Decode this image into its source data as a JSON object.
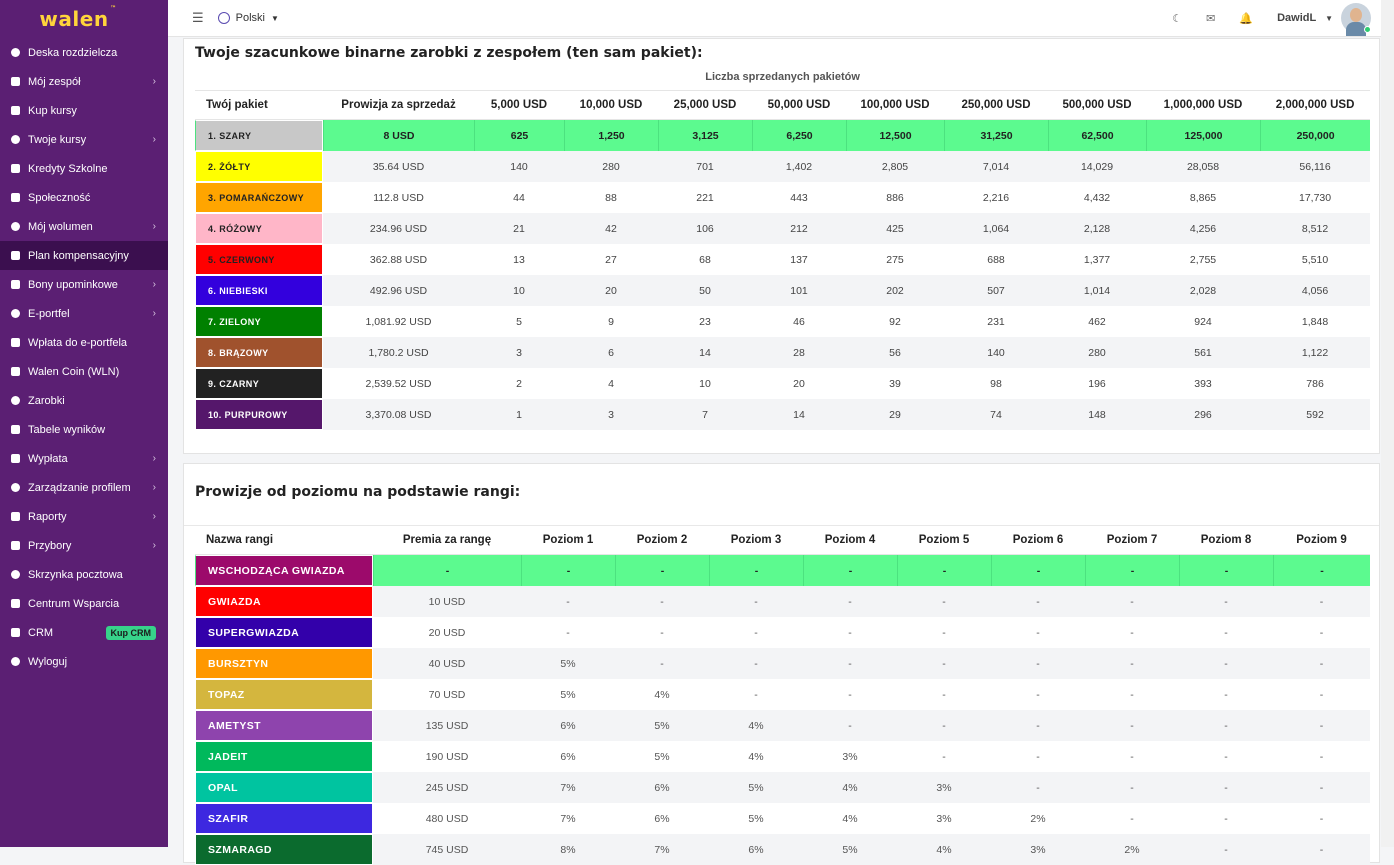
{
  "sidebar": {
    "logo": "walen",
    "logo_tm": "™",
    "items": [
      {
        "label": "Deska rozdzielcza",
        "icon": "dashboard-icon",
        "chevron": false
      },
      {
        "label": "Mój zespół",
        "icon": "team-icon",
        "chevron": true
      },
      {
        "label": "Kup kursy",
        "icon": "cart-icon",
        "chevron": false
      },
      {
        "label": "Twoje kursy",
        "icon": "book-icon",
        "chevron": true
      },
      {
        "label": "Kredyty Szkolne",
        "icon": "credit-icon",
        "chevron": false
      },
      {
        "label": "Społeczność",
        "icon": "community-icon",
        "chevron": false
      },
      {
        "label": "Mój wolumen",
        "icon": "chart-icon",
        "chevron": true
      },
      {
        "label": "Plan kompensacyjny",
        "icon": "plan-icon",
        "chevron": false,
        "active": true
      },
      {
        "label": "Bony upominkowe",
        "icon": "gift-icon",
        "chevron": true
      },
      {
        "label": "E-portfel",
        "icon": "wallet-icon",
        "chevron": true
      },
      {
        "label": "Wpłata do e-portfela",
        "icon": "deposit-icon",
        "chevron": false
      },
      {
        "label": "Walen Coin (WLN)",
        "icon": "coin-icon",
        "chevron": false
      },
      {
        "label": "Zarobki",
        "icon": "dollar-icon",
        "chevron": false
      },
      {
        "label": "Tabele wyników",
        "icon": "trophy-icon",
        "chevron": false
      },
      {
        "label": "Wypłata",
        "icon": "payout-icon",
        "chevron": true
      },
      {
        "label": "Zarządzanie profilem",
        "icon": "profile-icon",
        "chevron": true
      },
      {
        "label": "Raporty",
        "icon": "reports-icon",
        "chevron": true
      },
      {
        "label": "Przybory",
        "icon": "tools-icon",
        "chevron": true
      },
      {
        "label": "Skrzynka pocztowa",
        "icon": "mail-icon",
        "chevron": false
      },
      {
        "label": "Centrum Wsparcia",
        "icon": "support-icon",
        "chevron": false
      },
      {
        "label": "CRM",
        "icon": "crm-icon",
        "chevron": false,
        "badge": "Kup CRM"
      },
      {
        "label": "Wyloguj",
        "icon": "logout-icon",
        "chevron": false
      }
    ]
  },
  "topbar": {
    "language": "Polski",
    "username": "DawidL"
  },
  "binary": {
    "title": "Twoje szacunkowe binarne zarobki z zespołem (ten sam pakiet):",
    "super_header": "Liczba sprzedanych pakietów",
    "columns": [
      "Twój pakiet",
      "Prowizja za sprzedaż",
      "5,000 USD",
      "10,000 USD",
      "25,000 USD",
      "50,000 USD",
      "100,000 USD",
      "250,000 USD",
      "500,000 USD",
      "1,000,000 USD",
      "2,000,000 USD"
    ],
    "rows": [
      {
        "name": "1. SZARY",
        "color": "#c8c8c8",
        "text": "#222",
        "cells": [
          "8 USD",
          "625",
          "1,250",
          "3,125",
          "6,250",
          "12,500",
          "31,250",
          "62,500",
          "125,000",
          "250,000"
        ]
      },
      {
        "name": "2. ŻÓŁTY",
        "color": "#ffff00",
        "text": "#222",
        "cells": [
          "35.64 USD",
          "140",
          "280",
          "701",
          "1,402",
          "2,805",
          "7,014",
          "14,029",
          "28,058",
          "56,116"
        ]
      },
      {
        "name": "3. POMARAŃCZOWY",
        "color": "#ffa500",
        "text": "#222",
        "cells": [
          "112.8 USD",
          "44",
          "88",
          "221",
          "443",
          "886",
          "2,216",
          "4,432",
          "8,865",
          "17,730"
        ]
      },
      {
        "name": "4. RÓŻOWY",
        "color": "#ffb6c8",
        "text": "#222",
        "cells": [
          "234.96 USD",
          "21",
          "42",
          "106",
          "212",
          "425",
          "1,064",
          "2,128",
          "4,256",
          "8,512"
        ]
      },
      {
        "name": "5. CZERWONY",
        "color": "#ff0000",
        "text": "#222",
        "cells": [
          "362.88 USD",
          "13",
          "27",
          "68",
          "137",
          "275",
          "688",
          "1,377",
          "2,755",
          "5,510"
        ]
      },
      {
        "name": "6. NIEBIESKI",
        "color": "#3300dd",
        "text": "#fff",
        "cells": [
          "492.96 USD",
          "10",
          "20",
          "50",
          "101",
          "202",
          "507",
          "1,014",
          "2,028",
          "4,056"
        ]
      },
      {
        "name": "7. ZIELONY",
        "color": "#008000",
        "text": "#fff",
        "cells": [
          "1,081.92 USD",
          "5",
          "9",
          "23",
          "46",
          "92",
          "231",
          "462",
          "924",
          "1,848"
        ]
      },
      {
        "name": "8. BRĄZOWY",
        "color": "#a0522d",
        "text": "#fff",
        "cells": [
          "1,780.2 USD",
          "3",
          "6",
          "14",
          "28",
          "56",
          "140",
          "280",
          "561",
          "1,122"
        ]
      },
      {
        "name": "9. CZARNY",
        "color": "#222222",
        "text": "#fff",
        "cells": [
          "2,539.52 USD",
          "2",
          "4",
          "10",
          "20",
          "39",
          "98",
          "196",
          "393",
          "786"
        ]
      },
      {
        "name": "10. PURPUROWY",
        "color": "#55176b",
        "text": "#fff",
        "cells": [
          "3,370.08 USD",
          "1",
          "3",
          "7",
          "14",
          "29",
          "74",
          "148",
          "296",
          "592"
        ]
      }
    ]
  },
  "levels": {
    "title": "Prowizje od poziomu na podstawie rangi:",
    "columns": [
      "Nazwa rangi",
      "Premia za rangę",
      "Poziom 1",
      "Poziom 2",
      "Poziom 3",
      "Poziom 4",
      "Poziom 5",
      "Poziom 6",
      "Poziom 7",
      "Poziom 8",
      "Poziom 9"
    ],
    "rows": [
      {
        "name": "WSCHODZĄCA GWIAZDA",
        "color": "#9c0a6b",
        "text": "#fff",
        "cells": [
          "-",
          "-",
          "-",
          "-",
          "-",
          "-",
          "-",
          "-",
          "-",
          "-"
        ]
      },
      {
        "name": "GWIAZDA",
        "color": "#ff0000",
        "text": "#fff",
        "cells": [
          "10 USD",
          "-",
          "-",
          "-",
          "-",
          "-",
          "-",
          "-",
          "-",
          "-"
        ]
      },
      {
        "name": "SUPERGWIAZDA",
        "color": "#3300aa",
        "text": "#fff",
        "cells": [
          "20 USD",
          "-",
          "-",
          "-",
          "-",
          "-",
          "-",
          "-",
          "-",
          "-"
        ]
      },
      {
        "name": "BURSZTYN",
        "color": "#ff9800",
        "text": "#fff",
        "cells": [
          "40 USD",
          "5%",
          "-",
          "-",
          "-",
          "-",
          "-",
          "-",
          "-",
          "-"
        ]
      },
      {
        "name": "TOPAZ",
        "color": "#d4b63e",
        "text": "#fff",
        "cells": [
          "70 USD",
          "5%",
          "4%",
          "-",
          "-",
          "-",
          "-",
          "-",
          "-",
          "-"
        ]
      },
      {
        "name": "AMETYST",
        "color": "#8e44ad",
        "text": "#fff",
        "cells": [
          "135 USD",
          "6%",
          "5%",
          "4%",
          "-",
          "-",
          "-",
          "-",
          "-",
          "-"
        ]
      },
      {
        "name": "JADEIT",
        "color": "#00b95c",
        "text": "#fff",
        "cells": [
          "190 USD",
          "6%",
          "5%",
          "4%",
          "3%",
          "-",
          "-",
          "-",
          "-",
          "-"
        ]
      },
      {
        "name": "OPAL",
        "color": "#00c4a0",
        "text": "#fff",
        "cells": [
          "245 USD",
          "7%",
          "6%",
          "5%",
          "4%",
          "3%",
          "-",
          "-",
          "-",
          "-"
        ]
      },
      {
        "name": "SZAFIR",
        "color": "#3d28e0",
        "text": "#fff",
        "cells": [
          "480 USD",
          "7%",
          "6%",
          "5%",
          "4%",
          "3%",
          "2%",
          "-",
          "-",
          "-"
        ]
      },
      {
        "name": "SZMARAGD",
        "color": "#0b6b2e",
        "text": "#fff",
        "cells": [
          "745 USD",
          "8%",
          "7%",
          "6%",
          "5%",
          "4%",
          "3%",
          "2%",
          "-",
          "-"
        ]
      }
    ]
  }
}
